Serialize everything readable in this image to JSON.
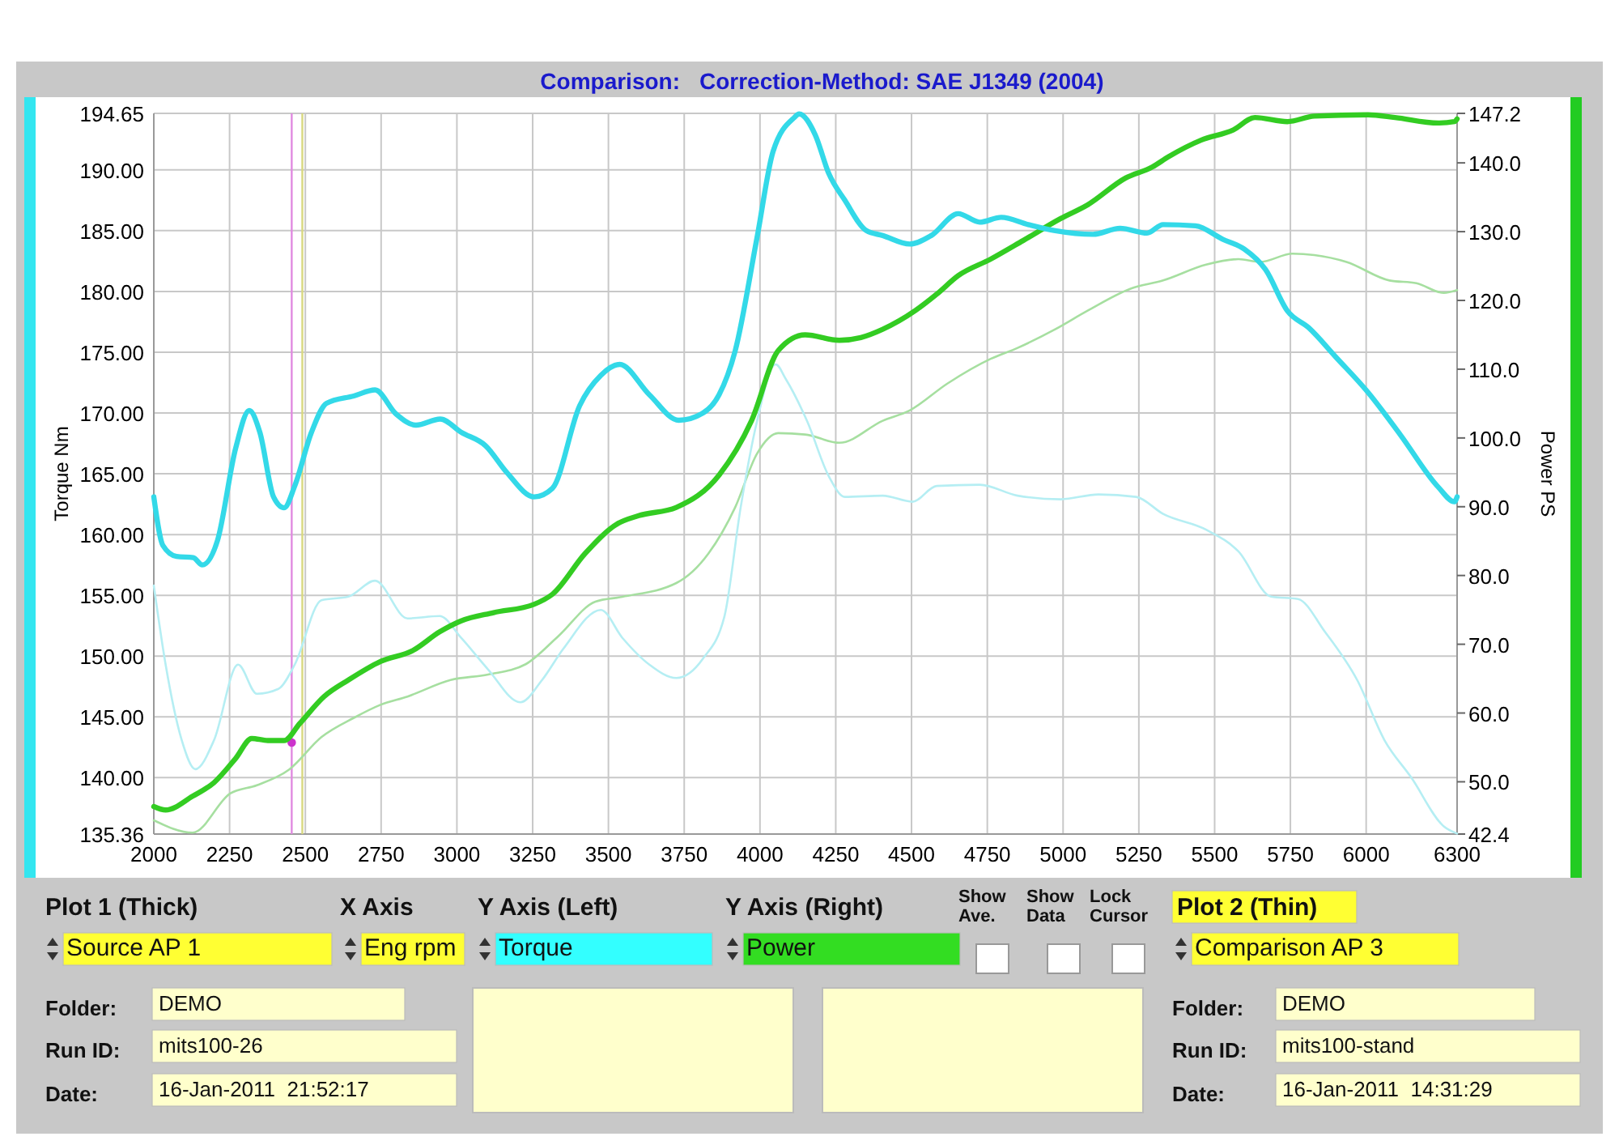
{
  "chart_data": {
    "type": "line",
    "title": "Comparison:",
    "subtitle": "Correction-Method: SAE J1349 (2004)",
    "ylabel": "Torque Nm",
    "y2label": "Power PS",
    "xlim": [
      2000,
      6300
    ],
    "xticks": [
      2000,
      2250,
      2500,
      2750,
      3000,
      3250,
      3500,
      3750,
      4000,
      4250,
      4500,
      4750,
      5000,
      5250,
      5500,
      5750,
      6000,
      6300
    ],
    "ylim": [
      135.36,
      194.65
    ],
    "yticks": [
      {
        "value": 135.36,
        "label": "135.36"
      },
      {
        "value": 140,
        "label": "140.00"
      },
      {
        "value": 145,
        "label": "145.00"
      },
      {
        "value": 150,
        "label": "150.00"
      },
      {
        "value": 155,
        "label": "155.00"
      },
      {
        "value": 160,
        "label": "160.00"
      },
      {
        "value": 165,
        "label": "165.00"
      },
      {
        "value": 170,
        "label": "170.00"
      },
      {
        "value": 175,
        "label": "175.00"
      },
      {
        "value": 180,
        "label": "180.00"
      },
      {
        "value": 185,
        "label": "185.00"
      },
      {
        "value": 190,
        "label": "190.00"
      },
      {
        "value": 194.65,
        "label": "194.65"
      }
    ],
    "y2lim": [
      42.4,
      147.2
    ],
    "y2ticks": [
      42.4,
      {
        "value": 50,
        "label": "50.0"
      },
      {
        "value": 60,
        "label": "60.0"
      },
      {
        "value": 70,
        "label": "70.0"
      },
      {
        "value": 80,
        "label": "80.0"
      },
      {
        "value": 90,
        "label": "90.0"
      },
      {
        "value": 100,
        "label": "100.0"
      },
      {
        "value": 110,
        "label": "110.0"
      },
      {
        "value": 120,
        "label": "120.0"
      },
      {
        "value": 130,
        "label": "130.0"
      },
      {
        "value": 140,
        "label": "140.0"
      },
      147.2
    ],
    "grid": true,
    "line_style": "solid",
    "series": [
      {
        "color": "#33d9e8",
        "x": [
          2000,
          2030,
          2075,
          2130,
          2160,
          2210,
          2270,
          2315,
          2350,
          2395,
          2430,
          2465,
          2520,
          2570,
          2660,
          2730,
          2800,
          2865,
          2945,
          3015,
          3095,
          3165,
          3255,
          3315,
          3405,
          3475,
          3537,
          3635,
          3732,
          3812,
          3865,
          3918,
          3990,
          4043,
          4113,
          4129,
          4182,
          4227,
          4280,
          4351,
          4405,
          4494,
          4565,
          4654,
          4725,
          4796,
          4885,
          4974,
          5099,
          5188,
          5277,
          5330,
          5437,
          5526,
          5597,
          5668,
          5740,
          5811,
          5900,
          6006,
          6113,
          6238,
          6291,
          6300
        ],
        "values": [
          163.1,
          159.1,
          158.2,
          158.1,
          157.5,
          159.5,
          167.1,
          170.2,
          168.4,
          163.1,
          162.2,
          164.0,
          168.4,
          170.8,
          171.4,
          171.9,
          169.9,
          169.0,
          169.5,
          168.4,
          167.3,
          165.1,
          163.1,
          163.8,
          170.6,
          173.1,
          174.0,
          171.5,
          169.4,
          170.0,
          171.5,
          175.1,
          184.4,
          191.5,
          194.3,
          194.6,
          192.9,
          189.7,
          187.5,
          185.0,
          184.6,
          183.9,
          184.6,
          186.4,
          185.7,
          186.1,
          185.5,
          185.0,
          184.7,
          185.2,
          184.8,
          185.5,
          185.4,
          184.3,
          183.5,
          181.8,
          178.4,
          177.0,
          174.6,
          171.7,
          168.2,
          163.9,
          162.7,
          163.1
        ]
      },
      {
        "color": "#33cc22",
        "axis": "y2",
        "x": [
          2000,
          2039,
          2128,
          2199,
          2270,
          2323,
          2376,
          2430,
          2482,
          2562,
          2642,
          2748,
          2855,
          2943,
          3014,
          3121,
          3254,
          3316,
          3423,
          3529,
          3600,
          3724,
          3865,
          3972,
          4060,
          4149,
          4262,
          4333,
          4405,
          4512,
          4583,
          4654,
          4761,
          4868,
          4992,
          5081,
          5206,
          5294,
          5348,
          5455,
          5562,
          5633,
          5740,
          5829,
          6006,
          6095,
          6238,
          6291,
          6300
        ],
        "values": [
          46.4,
          45.9,
          47.9,
          49.9,
          53.4,
          56.3,
          56.0,
          56.0,
          58.5,
          62.4,
          64.8,
          67.5,
          69.1,
          71.8,
          73.4,
          74.6,
          75.8,
          77.3,
          83.2,
          87.5,
          88.7,
          89.9,
          94.6,
          102.5,
          112.7,
          115.0,
          114.2,
          114.6,
          115.8,
          118.5,
          120.9,
          123.6,
          126.0,
          128.7,
          131.9,
          133.9,
          137.8,
          139.4,
          140.9,
          143.3,
          144.8,
          146.6,
          146.0,
          146.8,
          147.0,
          146.6,
          145.8,
          146.0,
          146.4
        ]
      },
      {
        "color": "#b5eef3",
        "x": [
          2000,
          2039,
          2092,
          2137,
          2199,
          2278,
          2340,
          2411,
          2465,
          2553,
          2642,
          2730,
          2837,
          2943,
          3014,
          3103,
          3209,
          3280,
          3351,
          3475,
          3546,
          3635,
          3724,
          3812,
          3883,
          3936,
          3990,
          4052,
          4085,
          4156,
          4227,
          4280,
          4405,
          4503,
          4583,
          4725,
          4850,
          4992,
          5117,
          5241,
          5330,
          5472,
          5579,
          5686,
          5775,
          5864,
          5971,
          6060,
          6149,
          6256,
          6300
        ],
        "values": [
          155.8,
          149.3,
          143.1,
          140.7,
          143.1,
          149.3,
          146.9,
          147.3,
          149.3,
          154.6,
          154.9,
          156.2,
          153.1,
          153.3,
          151.5,
          148.9,
          146.2,
          148.0,
          150.6,
          153.8,
          151.5,
          149.3,
          148.2,
          149.8,
          153.3,
          162.2,
          169.3,
          174.0,
          172.8,
          169.3,
          164.8,
          163.1,
          163.2,
          162.7,
          164.0,
          164.1,
          163.2,
          162.9,
          163.3,
          163.1,
          161.7,
          160.4,
          158.6,
          154.9,
          154.7,
          152.0,
          148.0,
          143.1,
          140.0,
          136.0,
          135.4
        ]
      },
      {
        "color": "#a6dfa0",
        "axis": "y2",
        "x": [
          2000,
          2128,
          2252,
          2340,
          2447,
          2553,
          2660,
          2748,
          2837,
          2979,
          3103,
          3227,
          3333,
          3457,
          3546,
          3724,
          3830,
          3918,
          3990,
          4060,
          4149,
          4262,
          4405,
          4494,
          4618,
          4761,
          4850,
          4974,
          5081,
          5223,
          5330,
          5472,
          5579,
          5650,
          5757,
          5829,
          5935,
          6077,
          6166,
          6256,
          6300
        ],
        "values": [
          44.4,
          42.6,
          48.3,
          49.5,
          51.8,
          56.5,
          59.3,
          61.2,
          62.4,
          64.8,
          65.6,
          67.1,
          71.1,
          76.2,
          76.9,
          78.9,
          83.2,
          89.9,
          97.7,
          100.7,
          100.5,
          99.3,
          102.5,
          104.0,
          107.9,
          111.5,
          113.1,
          115.8,
          118.5,
          121.7,
          122.9,
          125.2,
          126.0,
          125.6,
          126.8,
          126.6,
          125.6,
          122.9,
          122.5,
          121.1,
          121.5
        ]
      },
      {
        "type": "scatter",
        "marker": "circle",
        "color": "#cc33cc",
        "axis": "y2",
        "x": [
          2455
        ],
        "values": [
          55.7
        ]
      }
    ],
    "ref_lines": [
      {
        "axis": "x",
        "value": 2455,
        "color": "#e08ae0"
      },
      {
        "axis": "x",
        "value": 2490,
        "color": "#d8d880"
      }
    ],
    "annotations": [
      "Plot 1 (Thick)",
      "X Axis",
      "Y Axis (Left)",
      "Y Axis (Right)",
      "Show Ave.",
      "Show Data",
      "Lock Cursor",
      "Plot 2 (Thin)",
      "Source AP 1",
      "Eng rpm",
      "Torque",
      "Power",
      "Comparison AP 3",
      "Folder:",
      "DEMO",
      "Run ID:",
      "mits100-26",
      "Date:",
      "16-Jan-2011  21:52:17",
      "Folder:",
      "DEMO",
      "Run ID:",
      "mits100-stand",
      "Date:",
      "16-Jan-2011  14:31:29"
    ]
  }
}
